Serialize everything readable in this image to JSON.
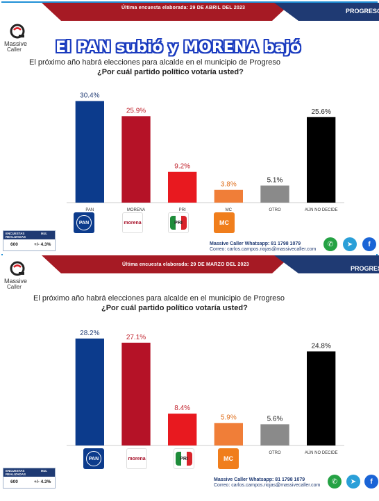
{
  "headline": "El PAN subió y MORENA bajó",
  "brand": {
    "name_line1": "Massive",
    "name_line2": "Caller"
  },
  "colors": {
    "header_red": "#a61a24",
    "header_navy": "#1f3a73",
    "pan": "#0c3b8c",
    "morena": "#b51227",
    "pri": "#e8191f",
    "mc": "#f07e38",
    "otro": "#8a8a8a",
    "aun_no_decide": "#000000",
    "label_blue": "#1f3a73",
    "label_red": "#c0202a",
    "label_orange": "#e0701e",
    "label_dark": "#222222"
  },
  "panels": [
    {
      "date_label": "Última encuesta elaborada:",
      "date_value": "29 DE ABRIL DEL 2023",
      "region": "PROGRESO",
      "subtitle": "El próximo año habrá elecciones para alcalde en el municipio de Progreso",
      "question": "¿Por cuál partido político votaría usted?",
      "stats": {
        "col1_header": "ENCUESTAS REALIZADAS",
        "col2_header": "M.E.",
        "col1_value": "600",
        "col2_value": "+/- 4.3%"
      },
      "contact": {
        "line1": "Massive Caller Whatsapp: 81 1798 1079",
        "line2": "Correo: carlos.campos.riojas@massivecaller.com"
      },
      "chart_data": {
        "type": "bar",
        "categories": [
          "PAN",
          "MORENA",
          "PRI",
          "MC",
          "OTRO",
          "AÚN NO DECIDE"
        ],
        "values": [
          30.4,
          25.9,
          9.2,
          3.8,
          5.1,
          25.6
        ],
        "value_labels": [
          "30.4%",
          "25.9%",
          "9.2%",
          "3.8%",
          "5.1%",
          "25.6%"
        ],
        "ylim": [
          0,
          32
        ],
        "grid": false,
        "legend": "none"
      }
    },
    {
      "date_label": "Última encuesta elaborada:",
      "date_value": "29 DE MARZO DEL 2023",
      "region": "PROGRESO",
      "subtitle": "El próximo año habrá elecciones para alcalde en el municipio de Progreso",
      "question": "¿Por cuál partido político votaría usted?",
      "stats": {
        "col1_header": "ENCUESTAS REALIZADAS",
        "col2_header": "M.E.",
        "col1_value": "600",
        "col2_value": "+/- 4.3%"
      },
      "contact": {
        "line1": "Massive Caller Whatsapp: 81 1798 1079",
        "line2": "Correo: carlos.campos.riojas@massivecaller.com"
      },
      "chart_data": {
        "type": "bar",
        "categories": [
          "PAN",
          "MORENA",
          "PRI",
          "MC",
          "OTRO",
          "AÚN NO DECIDE"
        ],
        "values": [
          28.2,
          27.1,
          8.4,
          5.9,
          5.6,
          24.8
        ],
        "value_labels": [
          "28.2%",
          "27.1%",
          "8.4%",
          "5.9%",
          "5.6%",
          "24.8%"
        ],
        "ylim": [
          0,
          30
        ],
        "grid": false,
        "legend": "none"
      }
    }
  ],
  "party_logos": [
    "PAN",
    "morena",
    "PRI",
    "MC"
  ],
  "icons": [
    "whatsapp-icon",
    "telegram-icon",
    "facebook-icon"
  ]
}
